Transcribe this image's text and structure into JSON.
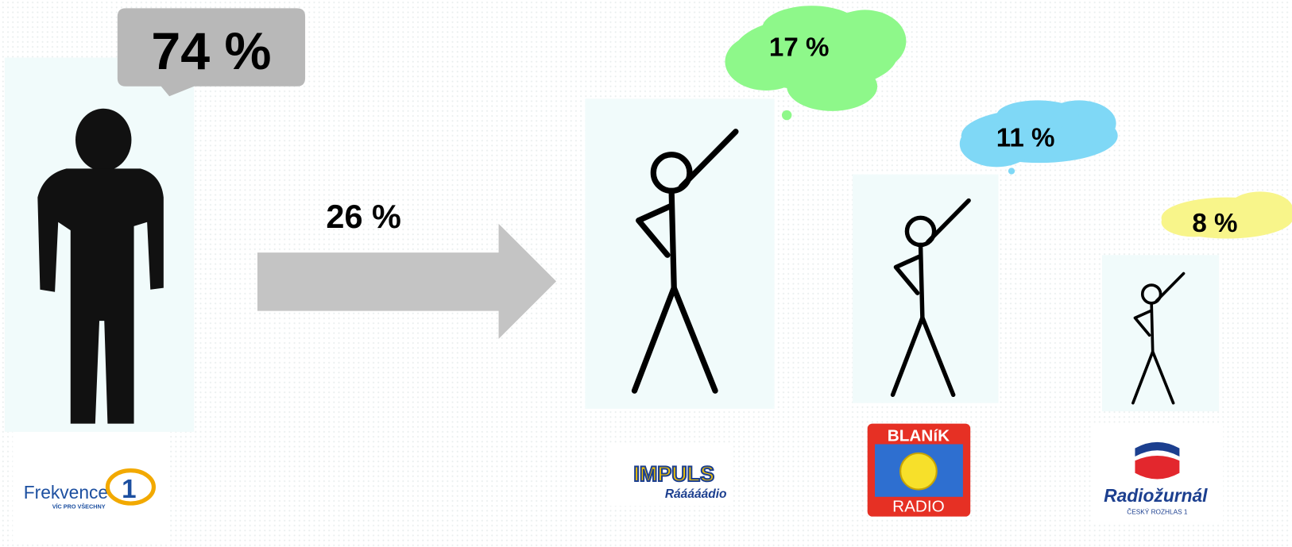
{
  "main": {
    "percent": "74 %",
    "logo": {
      "name": "Frekvence",
      "number": "1",
      "slogan": "VÍC PRO VŠECHNY"
    }
  },
  "switch": {
    "percent": "26 %"
  },
  "stations": [
    {
      "percent": "17 %",
      "logo": {
        "name": "IMPULS",
        "slogan": "Rááááádio"
      }
    },
    {
      "percent": "11 %",
      "logo": {
        "top": "BLANíK",
        "bottom": "RADIO"
      }
    },
    {
      "percent": "8 %",
      "logo": {
        "name": "Radiožurnál",
        "owner": "ČESKÝ ROZHLAS 1"
      }
    }
  ]
}
